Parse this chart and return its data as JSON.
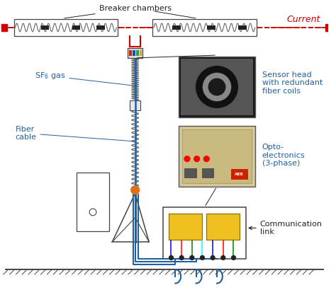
{
  "bg_color": "#ffffff",
  "blue": "#2060a0",
  "red": "#cc0000",
  "black": "#222222",
  "dkgray": "#444444",
  "coil_color": "#666666",
  "labels": {
    "breaker_chambers": "Breaker chambers",
    "current": "Current",
    "sf6_gas": "SF$_6$ gas",
    "fiber_cable": "Fiber\ncable",
    "sensor_head": "Sensor head\nwith redundant\nfiber coils",
    "opto_electronics": "Opto-\nelectronics\n(3-phase)",
    "comm_link": "Communication\nlink"
  },
  "fig_w": 4.74,
  "fig_h": 4.2,
  "dpi": 100
}
